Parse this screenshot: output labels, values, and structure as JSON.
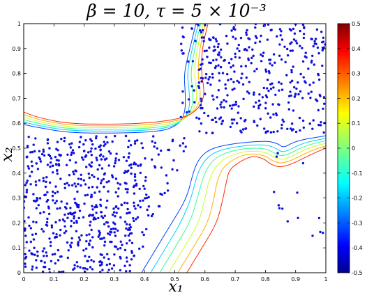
{
  "chart_data": {
    "type": "scatter",
    "title": "β = 10, τ = 5 × 10⁻³",
    "xlabel": "x₁",
    "ylabel": "x₂",
    "xlim": [
      0,
      1
    ],
    "ylim": [
      0,
      1
    ],
    "x_ticks": [
      "0",
      "0.1",
      "0.2",
      "0.3",
      "0.4",
      "0.5",
      "0.6",
      "0.7",
      "0.8",
      "0.9",
      "1"
    ],
    "y_ticks": [
      "0",
      "0.1",
      "0.2",
      "0.3",
      "0.4",
      "0.5",
      "0.6",
      "0.7",
      "0.8",
      "0.9",
      "1"
    ],
    "grid": false,
    "point_color": "#1010dd",
    "point_regions": [
      {
        "x": [
          0.0,
          0.38
        ],
        "y": [
          0.0,
          0.55
        ],
        "count": 560
      },
      {
        "x": [
          0.38,
          0.56
        ],
        "y": [
          0.0,
          0.55
        ],
        "count": 150
      },
      {
        "x": [
          0.58,
          1.0
        ],
        "y": [
          0.56,
          1.0
        ],
        "count": 360
      },
      {
        "x": [
          0.52,
          0.6
        ],
        "y": [
          0.6,
          1.0
        ],
        "count": 35
      },
      {
        "x": [
          0.8,
          1.0
        ],
        "y": [
          0.0,
          0.5
        ],
        "count": 14
      }
    ],
    "contour_levels": [
      -0.5,
      -0.4,
      -0.3,
      -0.2,
      -0.1,
      0,
      0.1,
      0.2,
      0.3,
      0.4,
      0.5
    ],
    "contours": [
      {
        "level": -0.1,
        "color": "#0040ff",
        "points": [
          [
            0,
            0.595
          ],
          [
            0.05,
            0.582
          ],
          [
            0.15,
            0.562
          ],
          [
            0.3,
            0.56
          ],
          [
            0.42,
            0.565
          ],
          [
            0.48,
            0.575
          ],
          [
            0.52,
            0.605
          ],
          [
            0.535,
            0.65
          ],
          [
            0.535,
            0.72
          ],
          [
            0.53,
            0.8
          ],
          [
            0.55,
            0.9
          ],
          [
            0.57,
            1.0
          ]
        ]
      },
      {
        "level": 0.0,
        "color": "#00d0ff",
        "points": [
          [
            0,
            0.605
          ],
          [
            0.05,
            0.59
          ],
          [
            0.15,
            0.57
          ],
          [
            0.3,
            0.568
          ],
          [
            0.42,
            0.573
          ],
          [
            0.49,
            0.585
          ],
          [
            0.53,
            0.615
          ],
          [
            0.55,
            0.66
          ],
          [
            0.548,
            0.73
          ],
          [
            0.54,
            0.8
          ],
          [
            0.558,
            0.9
          ],
          [
            0.578,
            1.0
          ]
        ]
      },
      {
        "level": 0.1,
        "color": "#30ff90",
        "points": [
          [
            0,
            0.615
          ],
          [
            0.05,
            0.598
          ],
          [
            0.15,
            0.577
          ],
          [
            0.3,
            0.575
          ],
          [
            0.42,
            0.58
          ],
          [
            0.5,
            0.594
          ],
          [
            0.54,
            0.625
          ],
          [
            0.56,
            0.67
          ],
          [
            0.56,
            0.735
          ],
          [
            0.552,
            0.8
          ],
          [
            0.566,
            0.9
          ],
          [
            0.586,
            1.0
          ]
        ]
      },
      {
        "level": 0.2,
        "color": "#c8ff20",
        "points": [
          [
            0,
            0.625
          ],
          [
            0.05,
            0.606
          ],
          [
            0.15,
            0.584
          ],
          [
            0.3,
            0.582
          ],
          [
            0.42,
            0.587
          ],
          [
            0.51,
            0.603
          ],
          [
            0.552,
            0.635
          ],
          [
            0.572,
            0.68
          ],
          [
            0.572,
            0.74
          ],
          [
            0.564,
            0.8
          ],
          [
            0.574,
            0.9
          ],
          [
            0.594,
            1.0
          ]
        ]
      },
      {
        "level": 0.3,
        "color": "#ffb000",
        "points": [
          [
            0,
            0.635
          ],
          [
            0.05,
            0.614
          ],
          [
            0.15,
            0.591
          ],
          [
            0.3,
            0.589
          ],
          [
            0.42,
            0.594
          ],
          [
            0.52,
            0.612
          ],
          [
            0.564,
            0.645
          ],
          [
            0.584,
            0.69
          ],
          [
            0.584,
            0.745
          ],
          [
            0.576,
            0.8
          ],
          [
            0.582,
            0.9
          ],
          [
            0.602,
            1.0
          ]
        ]
      },
      {
        "level": 0.4,
        "color": "#ff2a00",
        "points": [
          [
            0,
            0.645
          ],
          [
            0.05,
            0.622
          ],
          [
            0.15,
            0.598
          ],
          [
            0.3,
            0.596
          ],
          [
            0.42,
            0.601
          ],
          [
            0.53,
            0.621
          ],
          [
            0.576,
            0.655
          ],
          [
            0.596,
            0.7
          ],
          [
            0.596,
            0.75
          ],
          [
            0.588,
            0.8
          ],
          [
            0.59,
            0.9
          ],
          [
            0.61,
            1.0
          ]
        ]
      },
      {
        "level": -0.1,
        "color": "#0040ff",
        "points": [
          [
            0.39,
            0.0
          ],
          [
            0.44,
            0.1
          ],
          [
            0.49,
            0.2
          ],
          [
            0.54,
            0.3
          ],
          [
            0.56,
            0.4
          ],
          [
            0.58,
            0.46
          ],
          [
            0.62,
            0.5
          ],
          [
            0.7,
            0.52
          ],
          [
            0.8,
            0.53
          ],
          [
            0.84,
            0.52
          ],
          [
            0.86,
            0.5
          ],
          [
            0.9,
            0.53
          ],
          [
            1.0,
            0.55
          ]
        ]
      },
      {
        "level": 0.0,
        "color": "#00d0ff",
        "points": [
          [
            0.42,
            0.0
          ],
          [
            0.47,
            0.1
          ],
          [
            0.52,
            0.2
          ],
          [
            0.555,
            0.3
          ],
          [
            0.575,
            0.4
          ],
          [
            0.6,
            0.455
          ],
          [
            0.64,
            0.49
          ],
          [
            0.72,
            0.51
          ],
          [
            0.8,
            0.515
          ],
          [
            0.835,
            0.5
          ],
          [
            0.86,
            0.48
          ],
          [
            0.92,
            0.52
          ],
          [
            1.0,
            0.54
          ]
        ]
      },
      {
        "level": 0.1,
        "color": "#30ff90",
        "points": [
          [
            0.45,
            0.0
          ],
          [
            0.5,
            0.1
          ],
          [
            0.55,
            0.2
          ],
          [
            0.575,
            0.3
          ],
          [
            0.595,
            0.39
          ],
          [
            0.62,
            0.445
          ],
          [
            0.66,
            0.48
          ],
          [
            0.73,
            0.5
          ],
          [
            0.8,
            0.5
          ],
          [
            0.83,
            0.48
          ],
          [
            0.86,
            0.465
          ],
          [
            0.93,
            0.51
          ],
          [
            1.0,
            0.53
          ]
        ]
      },
      {
        "level": 0.2,
        "color": "#c8ff20",
        "points": [
          [
            0.48,
            0.0
          ],
          [
            0.53,
            0.1
          ],
          [
            0.58,
            0.2
          ],
          [
            0.6,
            0.3
          ],
          [
            0.615,
            0.38
          ],
          [
            0.64,
            0.435
          ],
          [
            0.68,
            0.47
          ],
          [
            0.74,
            0.49
          ],
          [
            0.8,
            0.485
          ],
          [
            0.825,
            0.465
          ],
          [
            0.86,
            0.45
          ],
          [
            0.94,
            0.5
          ],
          [
            1.0,
            0.52
          ]
        ]
      },
      {
        "level": 0.3,
        "color": "#ffb000",
        "points": [
          [
            0.51,
            0.0
          ],
          [
            0.56,
            0.1
          ],
          [
            0.61,
            0.2
          ],
          [
            0.63,
            0.3
          ],
          [
            0.64,
            0.37
          ],
          [
            0.66,
            0.425
          ],
          [
            0.7,
            0.46
          ],
          [
            0.75,
            0.48
          ],
          [
            0.8,
            0.47
          ],
          [
            0.82,
            0.45
          ],
          [
            0.86,
            0.435
          ],
          [
            0.95,
            0.49
          ],
          [
            1.0,
            0.51
          ]
        ]
      },
      {
        "level": 0.4,
        "color": "#ff2a00",
        "points": [
          [
            0.54,
            0.0
          ],
          [
            0.59,
            0.1
          ],
          [
            0.64,
            0.2
          ],
          [
            0.66,
            0.3
          ],
          [
            0.67,
            0.36
          ],
          [
            0.68,
            0.415
          ],
          [
            0.72,
            0.45
          ],
          [
            0.76,
            0.47
          ],
          [
            0.8,
            0.455
          ],
          [
            0.815,
            0.435
          ],
          [
            0.86,
            0.42
          ],
          [
            0.96,
            0.48
          ],
          [
            1.0,
            0.5
          ]
        ]
      }
    ],
    "colorbar": {
      "range": [
        -0.5,
        0.5
      ],
      "ticks": [
        "0.5",
        "0.4",
        "0.3",
        "0.2",
        "0.1",
        "0",
        "-0.1",
        "-0.2",
        "-0.3",
        "-0.4",
        "-0.5"
      ],
      "colormap": "jet"
    }
  }
}
